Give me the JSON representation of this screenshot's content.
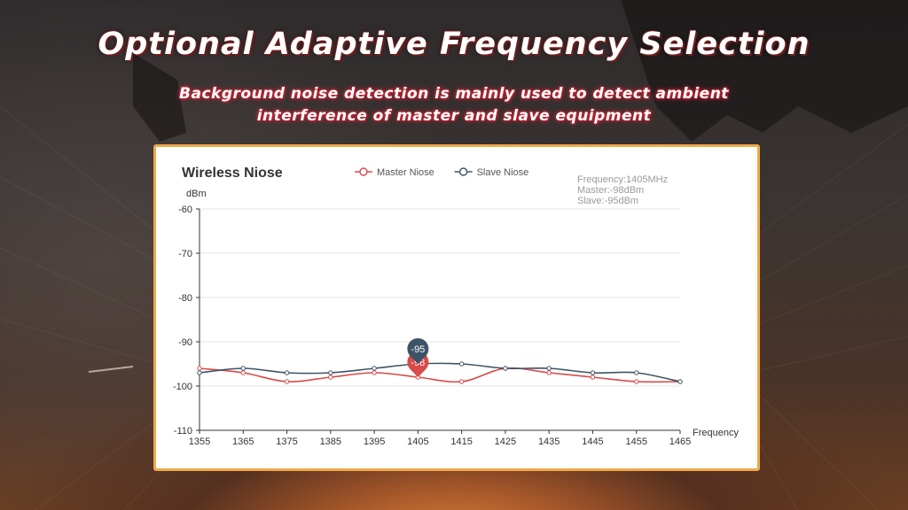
{
  "headline": "Optional Adaptive Frequency Selection",
  "subline": {
    "line1": "Background noise detection is mainly used to detect ambient",
    "line2": "interference of master and slave equipment"
  },
  "colors": {
    "master": "#d94a4a",
    "slave": "#3d5468",
    "card_border": "#f0a848"
  },
  "chart_data": {
    "type": "line",
    "title": "Wireless Niose",
    "ylabel": "dBm",
    "xlabel": "Frequency",
    "xlim": [
      1355,
      1465
    ],
    "ylim": [
      -110,
      -60
    ],
    "x_ticks": [
      1355,
      1365,
      1375,
      1385,
      1395,
      1405,
      1415,
      1425,
      1435,
      1445,
      1455,
      1465
    ],
    "y_ticks": [
      -60,
      -70,
      -80,
      -90,
      -100,
      -110
    ],
    "grid": true,
    "legend_position": "top-center",
    "x": [
      1355,
      1365,
      1375,
      1385,
      1395,
      1405,
      1415,
      1425,
      1435,
      1445,
      1455,
      1465
    ],
    "series": [
      {
        "name": "Master Niose",
        "color": "#d94a4a",
        "values": [
          -96,
          -97,
          -99,
          -98,
          -97,
          -98,
          -99,
          -96,
          -97,
          -98,
          -99,
          -99
        ]
      },
      {
        "name": "Slave Niose",
        "color": "#3d5468",
        "values": [
          -97,
          -96,
          -97,
          -97,
          -96,
          -95,
          -95,
          -96,
          -96,
          -97,
          -97,
          -99
        ]
      }
    ],
    "tooltip": {
      "line1": "Frequency:1405MHz",
      "line2": "Master:-98dBm",
      "line3": "Slave:-95dBm"
    },
    "markers": [
      {
        "series": "Master Niose",
        "x": 1405,
        "label": "-98"
      },
      {
        "series": "Slave Niose",
        "x": 1405,
        "label": "-95"
      }
    ]
  }
}
